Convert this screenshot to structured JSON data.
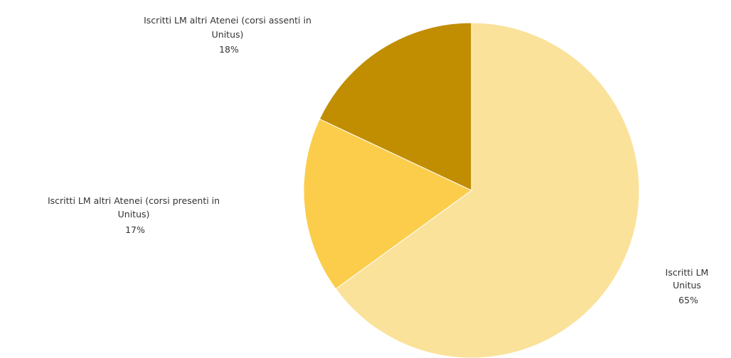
{
  "chart_data": {
    "type": "pie",
    "title": "",
    "slices": [
      {
        "name_lines": [
          "Iscritti LM",
          "Unitus"
        ],
        "percent_label": "65%",
        "value": 65,
        "color": "#fbe29a"
      },
      {
        "name_lines": [
          "Iscritti LM altri Atenei (corsi presenti in",
          "Unitus)"
        ],
        "percent_label": "17%",
        "value": 17,
        "color": "#fbcd4b"
      },
      {
        "name_lines": [
          "Iscritti LM altri Atenei (corsi assenti in",
          "Unitus)"
        ],
        "percent_label": "18%",
        "value": 18,
        "color": "#c08e00"
      }
    ],
    "start_position": "top",
    "direction": "clockwise",
    "border_color": "#ffffff",
    "legend": "none"
  }
}
